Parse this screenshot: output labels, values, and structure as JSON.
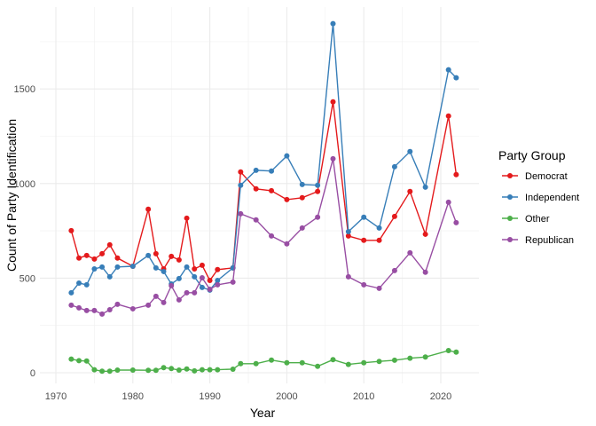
{
  "chart_data": {
    "type": "line",
    "xlabel": "Year",
    "ylabel": "Count of Party Identification",
    "xlim": [
      1970,
      2024
    ],
    "ylim": [
      -30,
      1930
    ],
    "xticks": [
      1970,
      1980,
      1990,
      2000,
      2010,
      2020
    ],
    "yticks": [
      0,
      500,
      1000,
      1500
    ],
    "grid": true,
    "legend": {
      "title": "Party Group",
      "placement": "right"
    },
    "x": [
      1972,
      1973,
      1974,
      1975,
      1976,
      1977,
      1978,
      1980,
      1982,
      1983,
      1984,
      1985,
      1986,
      1987,
      1988,
      1989,
      1990,
      1991,
      1993,
      1994,
      1996,
      1998,
      2000,
      2002,
      2004,
      2006,
      2008,
      2010,
      2012,
      2014,
      2016,
      2018,
      2021,
      2022
    ],
    "series": [
      {
        "name": "Democrat",
        "color": "#E41A1C",
        "values": [
          751,
          606,
          620,
          601,
          629,
          676,
          606,
          563,
          864,
          629,
          549,
          615,
          596,
          817,
          549,
          568,
          488,
          545,
          554,
          1061,
          972,
          962,
          915,
          925,
          958,
          1432,
          723,
          700,
          700,
          826,
          958,
          732,
          1357,
          1047
        ]
      },
      {
        "name": "Independent",
        "color": "#377EB8",
        "values": [
          423,
          474,
          465,
          549,
          559,
          507,
          559,
          563,
          620,
          554,
          535,
          469,
          498,
          559,
          507,
          451,
          437,
          488,
          554,
          991,
          1070,
          1066,
          1146,
          995,
          991,
          1845,
          746,
          822,
          765,
          1089,
          1169,
          981,
          1601,
          1559
        ]
      },
      {
        "name": "Other",
        "color": "#4DAF4A",
        "values": [
          72,
          64,
          62,
          16,
          8,
          8,
          14,
          14,
          13,
          13,
          27,
          22,
          14,
          20,
          10,
          16,
          16,
          16,
          19,
          48,
          48,
          67,
          53,
          53,
          34,
          69,
          44,
          53,
          60,
          66,
          77,
          83,
          117,
          109
        ]
      },
      {
        "name": "Republican",
        "color": "#984EA3",
        "values": [
          357,
          343,
          329,
          329,
          310,
          333,
          362,
          338,
          357,
          404,
          371,
          460,
          385,
          423,
          423,
          502,
          441,
          465,
          479,
          840,
          808,
          723,
          681,
          765,
          822,
          1131,
          507,
          465,
          446,
          540,
          634,
          531,
          901,
          793
        ]
      }
    ]
  }
}
